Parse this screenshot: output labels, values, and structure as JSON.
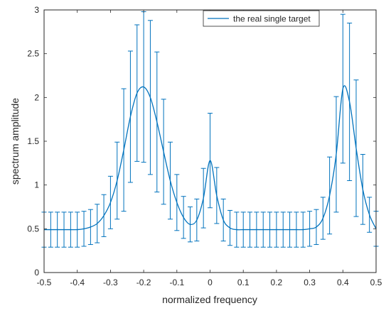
{
  "chart_data": {
    "type": "line",
    "xlabel": "normalized frequency",
    "ylabel": "spectrum amplitude",
    "xlim": [
      -0.5,
      0.5
    ],
    "ylim": [
      0,
      3
    ],
    "x_ticks": [
      "-0.5",
      "-0.4",
      "-0.3",
      "-0.2",
      "-0.1",
      "0",
      "0.1",
      "0.2",
      "0.3",
      "0.4",
      "0.5"
    ],
    "y_ticks": [
      "0",
      "0.5",
      "1",
      "1.5",
      "2",
      "2.5",
      "3"
    ],
    "x_tick_values": [
      -0.5,
      -0.4,
      -0.3,
      -0.2,
      -0.1,
      0,
      0.1,
      0.2,
      0.3,
      0.4,
      0.5
    ],
    "y_tick_values": [
      0,
      0.5,
      1,
      1.5,
      2,
      2.5,
      3
    ],
    "grid": false,
    "legend_position": "top-right",
    "line_color": "#0072BD",
    "series": [
      {
        "name": "the real single target",
        "x": [
          -0.5,
          -0.48,
          -0.46,
          -0.44,
          -0.42,
          -0.4,
          -0.38,
          -0.36,
          -0.34,
          -0.32,
          -0.3,
          -0.28,
          -0.26,
          -0.24,
          -0.22,
          -0.2,
          -0.18,
          -0.16,
          -0.14,
          -0.12,
          -0.1,
          -0.08,
          -0.06,
          -0.04,
          -0.02,
          0,
          0.02,
          0.04,
          0.06,
          0.08,
          0.1,
          0.12,
          0.14,
          0.16,
          0.18,
          0.2,
          0.22,
          0.24,
          0.26,
          0.28,
          0.3,
          0.32,
          0.34,
          0.36,
          0.38,
          0.4,
          0.42,
          0.44,
          0.46,
          0.48,
          0.5
        ],
        "y": [
          0.49,
          0.49,
          0.49,
          0.49,
          0.49,
          0.49,
          0.5,
          0.52,
          0.56,
          0.65,
          0.8,
          1.05,
          1.4,
          1.78,
          2.05,
          2.12,
          2.0,
          1.72,
          1.38,
          1.05,
          0.8,
          0.63,
          0.55,
          0.6,
          0.85,
          1.28,
          0.88,
          0.6,
          0.51,
          0.49,
          0.49,
          0.49,
          0.49,
          0.49,
          0.49,
          0.49,
          0.49,
          0.49,
          0.49,
          0.49,
          0.5,
          0.52,
          0.62,
          0.88,
          1.35,
          2.1,
          1.95,
          1.42,
          0.95,
          0.66,
          0.5
        ],
        "err": [
          0.2,
          0.2,
          0.2,
          0.2,
          0.2,
          0.2,
          0.2,
          0.2,
          0.22,
          0.24,
          0.3,
          0.44,
          0.7,
          0.75,
          0.78,
          0.86,
          0.88,
          0.8,
          0.6,
          0.44,
          0.32,
          0.24,
          0.2,
          0.24,
          0.34,
          0.54,
          0.32,
          0.24,
          0.2,
          0.2,
          0.2,
          0.2,
          0.2,
          0.2,
          0.2,
          0.2,
          0.2,
          0.2,
          0.2,
          0.2,
          0.2,
          0.2,
          0.24,
          0.44,
          0.66,
          0.85,
          0.9,
          0.78,
          0.4,
          0.2,
          0.2
        ]
      }
    ]
  }
}
